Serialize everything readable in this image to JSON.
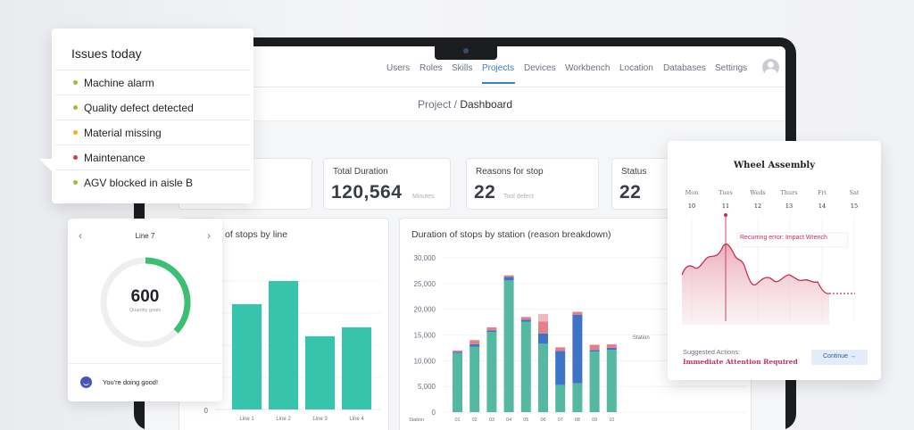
{
  "nav": {
    "items": [
      "Users",
      "Roles",
      "Skills",
      "Projects",
      "Devices",
      "Workbench",
      "Location",
      "Databases",
      "Settings"
    ],
    "active": "Projects"
  },
  "breadcrumb": {
    "parent": "Project",
    "separator": "/",
    "current": "Dashboard"
  },
  "stats": {
    "total_duration": {
      "label": "Total Duration",
      "value": "120,564",
      "unit": "Minutes"
    },
    "reasons": {
      "label": "Reasons for stop",
      "value": "22",
      "unit": "Tool defect"
    },
    "status": {
      "label": "Status",
      "value": "22"
    }
  },
  "panel_left": {
    "title": "of stops by line"
  },
  "panel_right": {
    "title": "Duration of stops by station (reason breakdown)",
    "legend_label": "Station"
  },
  "chart_data": [
    {
      "type": "bar",
      "title": "of stops by line",
      "categories": [
        "Line 1",
        "Line 2",
        "Line 3",
        "Line 4"
      ],
      "values": [
        0.82,
        1.0,
        0.57,
        0.64
      ],
      "y_tick_labels": [
        "0"
      ],
      "color": "#36c4ad"
    },
    {
      "type": "bar",
      "stacked": true,
      "title": "Duration of stops by station (reason breakdown)",
      "categories": [
        "01",
        "02",
        "03",
        "04",
        "05",
        "06",
        "07",
        "08",
        "09",
        "10"
      ],
      "x_axis_label": "Station",
      "ylim": [
        0,
        30000
      ],
      "y_ticks": [
        "0",
        "5,000",
        "10,000",
        "15,000",
        "20,000",
        "25,000",
        "30,000"
      ],
      "series": [
        {
          "values": [
            11500,
            12700,
            15600,
            25600,
            17600,
            13300,
            5300,
            5600,
            11800,
            12100
          ],
          "color": "#55b9a2"
        },
        {
          "values": [
            200,
            500,
            300,
            700,
            400,
            2000,
            6600,
            13300,
            300,
            400
          ],
          "color": "#3e73c6"
        },
        {
          "values": [
            300,
            800,
            600,
            300,
            500,
            2300,
            700,
            600,
            1000,
            700
          ],
          "color": "#e47f8c"
        },
        {
          "values": [
            0,
            0,
            0,
            0,
            0,
            1500,
            0,
            0,
            0,
            0
          ],
          "color": "#f2b8bf"
        }
      ]
    }
  ],
  "issues": {
    "title": "Issues today",
    "items": [
      {
        "label": "Machine alarm",
        "color": "#9bbf3c"
      },
      {
        "label": "Quality defect detected",
        "color": "#9bbf3c"
      },
      {
        "label": "Material missing",
        "color": "#f0b429"
      },
      {
        "label": "Maintenance",
        "color": "#e0384a"
      },
      {
        "label": "AGV blocked in aisle B",
        "color": "#9bbf3c"
      }
    ]
  },
  "line_card": {
    "title": "Line 7",
    "value": "600",
    "label": "Quantity goals",
    "progress": 0.37,
    "status": "You're doing good!",
    "accent": "#3bbf73"
  },
  "wheel": {
    "title": "Wheel Assembly",
    "days": [
      "Mon",
      "Tues",
      "Weds",
      "Thurs",
      "Fri",
      "Sat"
    ],
    "dates": [
      "10",
      "11",
      "12",
      "13",
      "14",
      "15"
    ],
    "error_label": "Recurring error: Impact Wrench",
    "suggested_label": "Suggested Actions:",
    "suggested_value": "Immediate Attention Required",
    "continue_label": "Continue",
    "accent": "#c2325a"
  }
}
